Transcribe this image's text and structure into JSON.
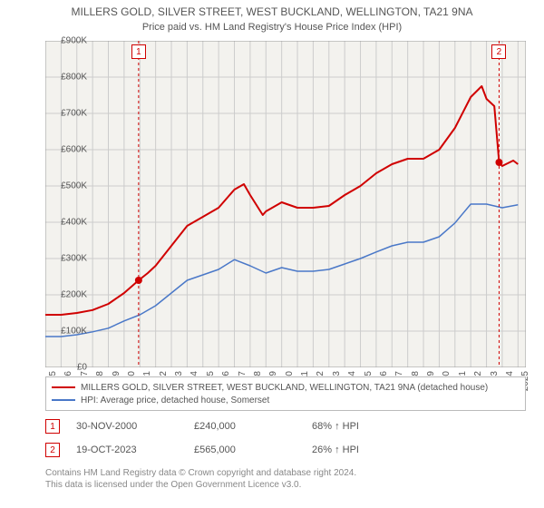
{
  "title": "MILLERS GOLD, SILVER STREET, WEST BUCKLAND, WELLINGTON, TA21 9NA",
  "subtitle": "Price paid vs. HM Land Registry's House Price Index (HPI)",
  "chart": {
    "type": "line",
    "background_color": "#f3f2ee",
    "grid_color": "#cccccc",
    "border_color": "#999999",
    "ylim": [
      0,
      900000
    ],
    "ytick_step": 100000,
    "ytick_labels": [
      "£0",
      "£100K",
      "£200K",
      "£300K",
      "£400K",
      "£500K",
      "£600K",
      "£700K",
      "£800K",
      "£900K"
    ],
    "xlim": [
      1995,
      2025.5
    ],
    "xtick_years": [
      1995,
      1996,
      1997,
      1998,
      1999,
      2000,
      2001,
      2002,
      2003,
      2004,
      2005,
      2006,
      2007,
      2008,
      2009,
      2010,
      2011,
      2012,
      2013,
      2014,
      2015,
      2016,
      2017,
      2018,
      2019,
      2020,
      2021,
      2022,
      2023,
      2024,
      2025
    ],
    "series": [
      {
        "name": "property",
        "color": "#d00000",
        "width": 2,
        "points": [
          [
            1995,
            145000
          ],
          [
            1996,
            145000
          ],
          [
            1997,
            150000
          ],
          [
            1998,
            158000
          ],
          [
            1999,
            175000
          ],
          [
            2000,
            205000
          ],
          [
            2000.92,
            240000
          ],
          [
            2001.5,
            260000
          ],
          [
            2002,
            280000
          ],
          [
            2003,
            335000
          ],
          [
            2004,
            390000
          ],
          [
            2005,
            415000
          ],
          [
            2006,
            440000
          ],
          [
            2007,
            490000
          ],
          [
            2007.6,
            505000
          ],
          [
            2008,
            475000
          ],
          [
            2008.8,
            420000
          ],
          [
            2009,
            430000
          ],
          [
            2010,
            455000
          ],
          [
            2011,
            440000
          ],
          [
            2012,
            440000
          ],
          [
            2013,
            445000
          ],
          [
            2014,
            475000
          ],
          [
            2015,
            500000
          ],
          [
            2016,
            535000
          ],
          [
            2017,
            560000
          ],
          [
            2018,
            575000
          ],
          [
            2019,
            575000
          ],
          [
            2020,
            600000
          ],
          [
            2021,
            660000
          ],
          [
            2022,
            745000
          ],
          [
            2022.7,
            775000
          ],
          [
            2023,
            740000
          ],
          [
            2023.5,
            720000
          ],
          [
            2023.8,
            565000
          ],
          [
            2024,
            555000
          ],
          [
            2024.7,
            570000
          ],
          [
            2025,
            560000
          ]
        ]
      },
      {
        "name": "hpi",
        "color": "#4a78c8",
        "width": 1.5,
        "points": [
          [
            1995,
            85000
          ],
          [
            1996,
            85000
          ],
          [
            1997,
            90000
          ],
          [
            1998,
            98000
          ],
          [
            1999,
            108000
          ],
          [
            2000,
            128000
          ],
          [
            2001,
            145000
          ],
          [
            2002,
            170000
          ],
          [
            2003,
            205000
          ],
          [
            2004,
            240000
          ],
          [
            2005,
            255000
          ],
          [
            2006,
            270000
          ],
          [
            2007,
            297000
          ],
          [
            2008,
            280000
          ],
          [
            2009,
            260000
          ],
          [
            2010,
            275000
          ],
          [
            2011,
            265000
          ],
          [
            2012,
            265000
          ],
          [
            2013,
            270000
          ],
          [
            2014,
            285000
          ],
          [
            2015,
            300000
          ],
          [
            2016,
            318000
          ],
          [
            2017,
            335000
          ],
          [
            2018,
            345000
          ],
          [
            2019,
            345000
          ],
          [
            2020,
            360000
          ],
          [
            2021,
            398000
          ],
          [
            2022,
            450000
          ],
          [
            2023,
            450000
          ],
          [
            2024,
            440000
          ],
          [
            2025,
            448000
          ]
        ]
      }
    ],
    "sale_markers": [
      {
        "num": "1",
        "year": 2000.92,
        "price": 240000,
        "color": "#d00000"
      },
      {
        "num": "2",
        "year": 2023.8,
        "price": 565000,
        "color": "#d00000"
      }
    ]
  },
  "legend": {
    "items": [
      {
        "color": "#d00000",
        "label": "MILLERS GOLD, SILVER STREET, WEST BUCKLAND, WELLINGTON, TA21 9NA (detached house)"
      },
      {
        "color": "#4a78c8",
        "label": "HPI: Average price, detached house, Somerset"
      }
    ]
  },
  "marker_rows": [
    {
      "num": "1",
      "date": "30-NOV-2000",
      "price": "£240,000",
      "change": "68% ↑ HPI",
      "color": "#d00000"
    },
    {
      "num": "2",
      "date": "19-OCT-2023",
      "price": "£565,000",
      "change": "26% ↑ HPI",
      "color": "#d00000"
    }
  ],
  "attribution": {
    "line1": "Contains HM Land Registry data © Crown copyright and database right 2024.",
    "line2": "This data is licensed under the Open Government Licence v3.0."
  }
}
